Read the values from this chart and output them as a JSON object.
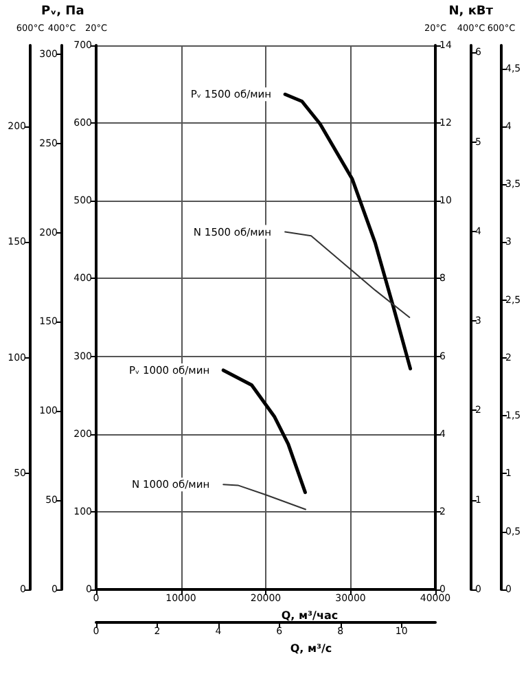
{
  "chart_data": [
    {
      "type": "line",
      "annotations": [
        "Pᵥ, Па",
        "N, кВт"
      ],
      "xlabel": "Q, м³/час",
      "x2label": "Q, м³/с",
      "ylabel": "20°C",
      "y2label": "20°C",
      "y3label": "400°C",
      "xlim": [
        0,
        40000
      ],
      "xticks": [
        0,
        10000,
        20000,
        30000,
        40000
      ],
      "x2lim": [
        0,
        11.11
      ],
      "x2ticks": [
        0,
        2,
        4,
        6,
        8,
        10
      ],
      "ylim": [
        0,
        700
      ],
      "yticks": [
        0,
        100,
        200,
        300,
        400,
        500,
        600,
        700
      ],
      "y2lim": [
        0,
        14
      ],
      "y2ticks": [
        0,
        2,
        4,
        6,
        8,
        10,
        12,
        14
      ],
      "y3lim": [
        0,
        305
      ],
      "y3ticks": [
        0,
        50,
        100,
        150,
        200,
        250,
        300
      ],
      "grid": true,
      "marker": "none",
      "line_style": "solid",
      "series": [
        {
          "name": "Pᵥ 1500 об/мин",
          "color": "#000000",
          "axis": "y",
          "x": [
            22280,
            24270,
            26400,
            30200,
            32900,
            35060,
            37050
          ],
          "values": [
            637,
            628,
            599,
            528,
            446,
            363,
            284
          ]
        },
        {
          "name": "N 1500 об/мин",
          "color": "#333333",
          "axis": "y2",
          "x": [
            22280,
            25350,
            29660,
            32900,
            36950
          ],
          "values": [
            9.2,
            9.1,
            8.3,
            7.7,
            7.0
          ]
        },
        {
          "name": "Pᵥ 1000 об/мин",
          "color": "#000000",
          "axis": "y",
          "x": [
            15000,
            18340,
            21040,
            22650,
            24650
          ],
          "values": [
            282,
            263,
            222,
            187,
            125
          ]
        },
        {
          "name": "N 1000 об/мин",
          "color": "#333333",
          "axis": "y2",
          "x": [
            15000,
            16720,
            19950,
            24700
          ],
          "values": [
            2.7,
            2.68,
            2.44,
            2.06
          ]
        }
      ]
    },
    {
      "type": "line",
      "tick_labels": "y",
      "xlim": [
        0,
        40000
      ],
      "ylabel": "600°C",
      "ylim": [
        0,
        235
      ],
      "yticks": [
        0,
        50,
        100,
        150,
        200
      ]
    },
    {
      "type": "line",
      "tick_labels": "y",
      "xlim": [
        0,
        40000
      ],
      "ylabel": "400°C",
      "ylim": [
        0,
        6.08
      ],
      "yticks": [
        0,
        1,
        2,
        3,
        4,
        5,
        6
      ]
    },
    {
      "type": "line",
      "tick_labels": "y",
      "xlim": [
        0,
        40000
      ],
      "ylabel": "600°C",
      "ylim": [
        0,
        4.7
      ],
      "yticks": [
        0,
        {
          "value": 0.5,
          "label": "0,5"
        },
        1,
        {
          "value": 1.5,
          "label": "1,5"
        },
        2,
        {
          "value": 2.5,
          "label": "2,5"
        },
        3,
        {
          "value": 3.5,
          "label": "3,5"
        },
        4,
        {
          "value": 4.5,
          "label": "4,5"
        }
      ]
    }
  ]
}
